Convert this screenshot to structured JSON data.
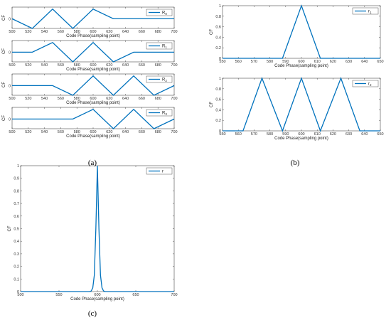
{
  "panel_labels": {
    "a": "(a)",
    "b": "(b)",
    "c": "(c)"
  },
  "chart_data": [
    {
      "id": "a1",
      "type": "line",
      "xlabel": "Code Phase(sampling point)",
      "ylabel": "CF",
      "xlim": [
        500,
        700
      ],
      "ylim": [
        -1,
        1.2
      ],
      "xticks": [
        500,
        520,
        540,
        560,
        580,
        600,
        620,
        640,
        660,
        680,
        700
      ],
      "yticks": [
        0
      ],
      "legend_position": "top-right",
      "grid": false,
      "series": [
        {
          "name": "R0",
          "label_main": "R",
          "label_sub": "0",
          "color": "#0072bd",
          "x": [
            500,
            525,
            550,
            575,
            600,
            625,
            700
          ],
          "y": [
            0,
            -1,
            1,
            -1,
            1,
            0,
            0
          ]
        }
      ]
    },
    {
      "id": "a2",
      "type": "line",
      "xlabel": "Code Phase(sampling point)",
      "ylabel": "CF",
      "xlim": [
        500,
        700
      ],
      "ylim": [
        -1,
        1.2
      ],
      "xticks": [
        500,
        520,
        540,
        560,
        580,
        600,
        620,
        640,
        660,
        680,
        700
      ],
      "yticks": [
        0
      ],
      "legend_position": "top-right",
      "grid": false,
      "series": [
        {
          "name": "R1",
          "label_main": "R",
          "label_sub": "1",
          "color": "#0072bd",
          "x": [
            500,
            525,
            550,
            575,
            600,
            625,
            650,
            700
          ],
          "y": [
            0,
            0,
            1,
            -1,
            1,
            -1,
            0,
            0
          ]
        }
      ]
    },
    {
      "id": "a3",
      "type": "line",
      "xlabel": "Code Phase(sampling point)",
      "ylabel": "CF",
      "xlim": [
        500,
        700
      ],
      "ylim": [
        -1,
        1.2
      ],
      "xticks": [
        500,
        520,
        540,
        560,
        580,
        600,
        620,
        640,
        660,
        680,
        700
      ],
      "yticks": [
        0
      ],
      "legend_position": "top-right",
      "grid": false,
      "series": [
        {
          "name": "R2",
          "label_main": "R",
          "label_sub": "2",
          "color": "#0072bd",
          "x": [
            500,
            550,
            575,
            600,
            625,
            650,
            675,
            700
          ],
          "y": [
            0,
            0,
            -1,
            1,
            -1,
            1,
            -1,
            0
          ]
        }
      ]
    },
    {
      "id": "a4",
      "type": "line",
      "xlabel": "Code Phase(sampling point)",
      "ylabel": "CF",
      "xlim": [
        500,
        700
      ],
      "ylim": [
        -1,
        1.2
      ],
      "xticks": [
        500,
        520,
        540,
        560,
        580,
        600,
        620,
        640,
        660,
        680,
        700
      ],
      "yticks": [
        0
      ],
      "legend_position": "top-right",
      "grid": false,
      "series": [
        {
          "name": "R3",
          "label_main": "R",
          "label_sub": "3",
          "color": "#0072bd",
          "x": [
            500,
            575,
            600,
            625,
            650,
            675,
            700
          ],
          "y": [
            0,
            0,
            1,
            -1,
            1,
            -1,
            0
          ]
        }
      ]
    },
    {
      "id": "b1",
      "type": "line",
      "xlabel": "Code Phase(sampling point)",
      "ylabel": "CF",
      "xlim": [
        550,
        650
      ],
      "ylim": [
        0,
        1
      ],
      "xticks": [
        550,
        560,
        570,
        580,
        590,
        600,
        610,
        620,
        630,
        640,
        650
      ],
      "yticks": [
        0,
        0.2,
        0.4,
        0.6,
        0.8,
        1
      ],
      "legend_position": "top-right",
      "grid": false,
      "series": [
        {
          "name": "r1",
          "label_main": "r",
          "label_sub": "1",
          "color": "#0072bd",
          "x": [
            550,
            588,
            600,
            612,
            650
          ],
          "y": [
            0,
            0,
            1,
            0,
            0
          ]
        }
      ]
    },
    {
      "id": "b2",
      "type": "line",
      "xlabel": "Code Phase(sampling point)",
      "ylabel": "CF",
      "xlim": [
        550,
        650
      ],
      "ylim": [
        0,
        1
      ],
      "xticks": [
        550,
        560,
        570,
        580,
        590,
        600,
        610,
        620,
        630,
        640,
        650
      ],
      "yticks": [
        0,
        0.2,
        0.4,
        0.6,
        0.8,
        1
      ],
      "legend_position": "top-right",
      "grid": false,
      "series": [
        {
          "name": "r2",
          "label_main": "r",
          "label_sub": "2",
          "color": "#0072bd",
          "x": [
            550,
            563,
            575,
            588,
            600,
            612,
            625,
            637,
            650
          ],
          "y": [
            0,
            0,
            1,
            0,
            1,
            0,
            1,
            0,
            0
          ]
        }
      ]
    },
    {
      "id": "c",
      "type": "line",
      "xlabel": "Code Phase(sampling point)",
      "ylabel": "CF",
      "xlim": [
        500,
        700
      ],
      "ylim": [
        0,
        1
      ],
      "xticks": [
        500,
        550,
        600,
        650,
        700
      ],
      "yticks": [
        0,
        0.1,
        0.2,
        0.3,
        0.4,
        0.5,
        0.6,
        0.7,
        0.8,
        0.9,
        1
      ],
      "legend_position": "top-right",
      "grid": false,
      "series": [
        {
          "name": "r",
          "label_main": "r",
          "label_sub": "",
          "color": "#0072bd",
          "x": [
            500,
            590,
            592,
            594,
            596,
            598,
            600,
            602,
            604,
            606,
            608,
            610,
            700
          ],
          "y": [
            0,
            0,
            0.005,
            0.03,
            0.13,
            0.5,
            1,
            0.5,
            0.13,
            0.03,
            0.005,
            0,
            0
          ]
        }
      ]
    }
  ]
}
